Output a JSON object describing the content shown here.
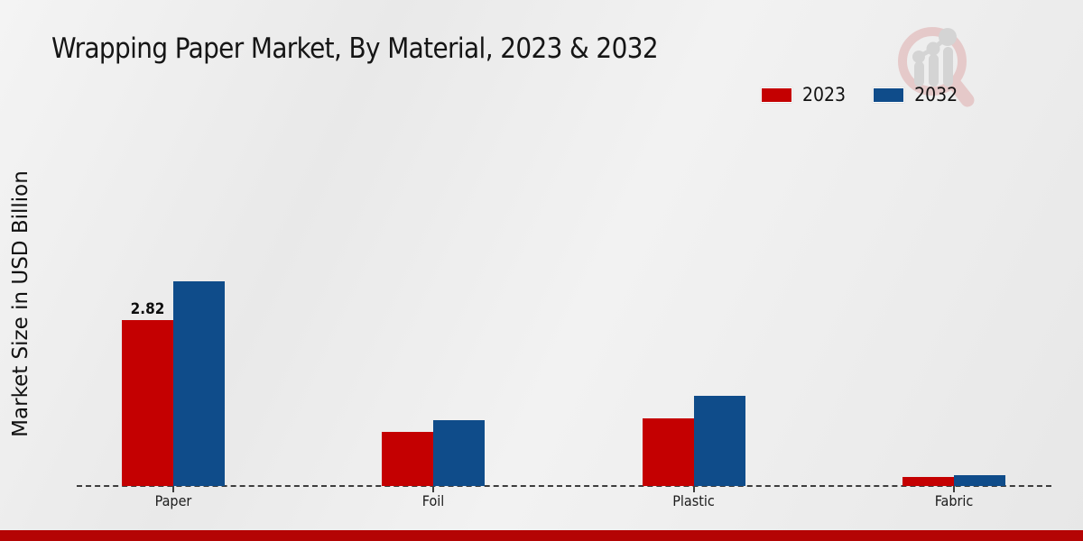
{
  "chart_data": {
    "type": "bar",
    "title": "Wrapping Paper Market, By Material, 2023 & 2032",
    "xlabel": "",
    "ylabel": "Market Size in USD Billion",
    "categories": [
      "Paper",
      "Foil",
      "Plastic",
      "Fabric"
    ],
    "series": [
      {
        "name": "2023",
        "color": "#c40001",
        "values": [
          2.82,
          0.92,
          1.15,
          0.15
        ],
        "data_labels": [
          "2.82",
          "",
          "",
          ""
        ]
      },
      {
        "name": "2032",
        "color": "#0f4c8a",
        "values": [
          3.48,
          1.12,
          1.53,
          0.19
        ],
        "data_labels": [
          "",
          "",
          "",
          ""
        ]
      }
    ],
    "ylim": [
      0,
      4
    ],
    "grid": false,
    "y_axis_ticks_visible": false,
    "baseline_style": "dashed",
    "legend_position": "top-right"
  },
  "branding": {
    "watermark_icon": "magnifier-trend-chart-logo",
    "footer_strip_color": "#b40404"
  }
}
